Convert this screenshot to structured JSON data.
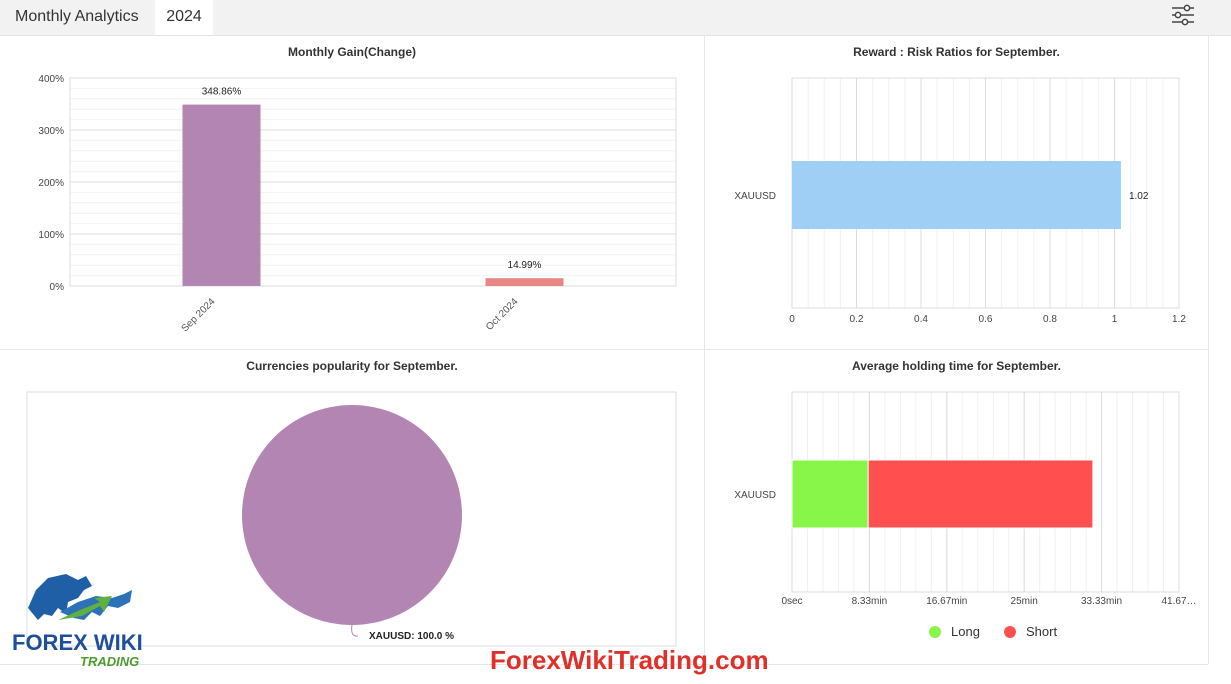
{
  "header": {
    "title": "Monthly Analytics",
    "year_tab": "2024",
    "settings_icon": "sliders-icon"
  },
  "watermark_text": "ForexWikiTrading.com",
  "logo": {
    "line1": "FOREX WIKI",
    "line2": "TRADING"
  },
  "colors": {
    "purple": "#b385b3",
    "salmon": "#e88686",
    "lightblue": "#a0cff5",
    "long": "#88f549",
    "short": "#ff4f4f",
    "watermark": "#e0302a"
  },
  "chart_data": [
    {
      "type": "bar",
      "title": "Monthly Gain(Change)",
      "categories": [
        "Sep 2024",
        "Oct 2024"
      ],
      "values": [
        348.86,
        14.99
      ],
      "value_labels": [
        "348.86%",
        "14.99%"
      ],
      "bar_colors": [
        "#b385b3",
        "#e88686"
      ],
      "ylim": [
        0,
        400
      ],
      "yticks": [
        0,
        100,
        200,
        300,
        400
      ],
      "ytick_labels": [
        "0%",
        "100%",
        "200%",
        "300%",
        "400%"
      ],
      "grid": true
    },
    {
      "type": "bar",
      "orientation": "horizontal",
      "title": "Reward : Risk Ratios for September.",
      "categories": [
        "XAUUSD"
      ],
      "values": [
        1.02
      ],
      "value_labels": [
        "1.02"
      ],
      "xlim": [
        0,
        1.2
      ],
      "xticks": [
        0,
        0.2,
        0.4,
        0.6,
        0.8,
        1,
        1.2
      ],
      "xtick_labels": [
        "0",
        "0.2",
        "0.4",
        "0.6",
        "0.8",
        "1",
        "1.2"
      ],
      "grid": true
    },
    {
      "type": "pie",
      "title": "Currencies popularity for September.",
      "labels": [
        "XAUUSD"
      ],
      "values": [
        100.0
      ],
      "slice_labels": [
        "XAUUSD: 100.0 %"
      ]
    },
    {
      "type": "bar",
      "orientation": "horizontal",
      "stacked": true,
      "title": "Average holding time for September.",
      "categories": [
        "XAUUSD"
      ],
      "series": [
        {
          "name": "Long",
          "values": [
            8.2
          ],
          "color": "#88f549"
        },
        {
          "name": "Short",
          "values": [
            24.2
          ],
          "color": "#ff4f4f"
        }
      ],
      "x_unit": "min",
      "xlim": [
        0,
        41.67
      ],
      "xticks": [
        0,
        8.33,
        16.67,
        25,
        33.33,
        41.67
      ],
      "xtick_labels": [
        "0sec",
        "8.33min",
        "16.67min",
        "25min",
        "33.33min",
        "41.67…"
      ],
      "legend": "bottom",
      "grid": true
    }
  ]
}
